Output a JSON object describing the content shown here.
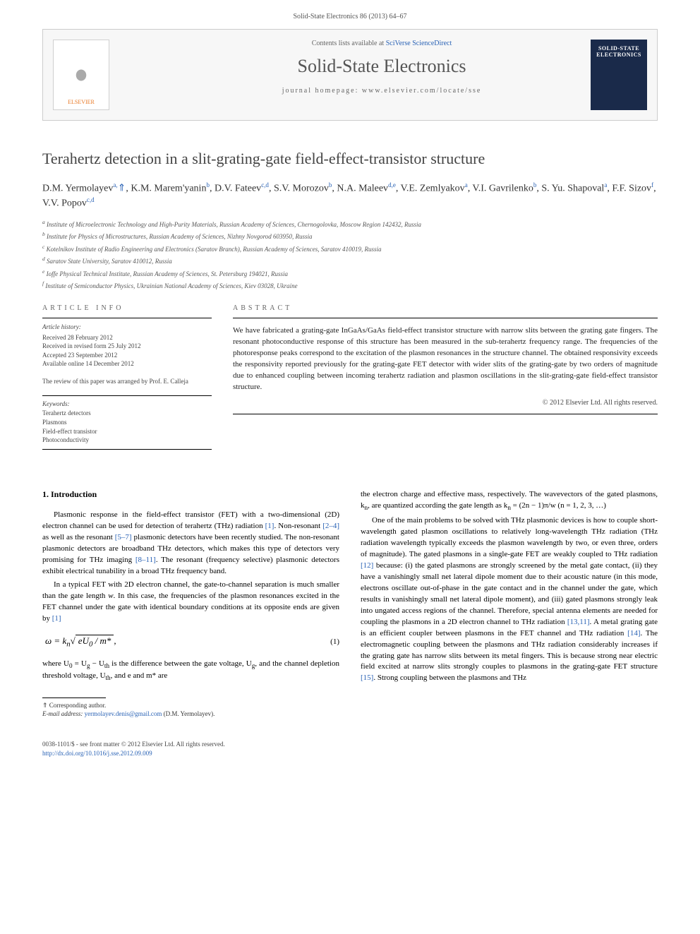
{
  "header": {
    "journal_ref": "Solid-State Electronics 86 (2013) 64–67"
  },
  "banner": {
    "contents_prefix": "Contents lists available at ",
    "contents_link": "SciVerse ScienceDirect",
    "journal_name": "Solid-State Electronics",
    "homepage_label": "journal homepage: www.elsevier.com/locate/sse",
    "publisher_logo_text": "ELSEVIER",
    "cover_title": "SOLID-STATE ELECTRONICS"
  },
  "article": {
    "title": "Terahertz detection in a slit-grating-gate field-effect-transistor structure",
    "authors_html": "D.M. Yermolayev<sup>a,</sup><span class='star'>⇑</span>, K.M. Marem'yanin<sup>b</sup>, D.V. Fateev<sup>c,d</sup>, S.V. Morozov<sup>b</sup>, N.A. Maleev<sup>d,e</sup>, V.E. Zemlyakov<sup>a</sup>, V.I. Gavrilenko<sup>b</sup>, S. Yu. Shapoval<sup>a</sup>, F.F. Sizov<sup>f</sup>, V.V. Popov<sup>c,d</sup>",
    "affiliations": [
      "a Institute of Microelectronic Technology and High-Purity Materials, Russian Academy of Sciences, Chernogolovka, Moscow Region 142432, Russia",
      "b Institute for Physics of Microstructures, Russian Academy of Sciences, Nizhny Novgorod 603950, Russia",
      "c Kotelnikov Institute of Radio Engineering and Electronics (Saratov Branch), Russian Academy of Sciences, Saratov 410019, Russia",
      "d Saratov State University, Saratov 410012, Russia",
      "e Ioffe Physical Technical Institute, Russian Academy of Sciences, St. Petersburg 194021, Russia",
      "f Institute of Semiconductor Physics, Ukrainian National Academy of Sciences, Kiev 03028, Ukraine"
    ]
  },
  "info": {
    "label": "ARTICLE INFO",
    "history_label": "Article history:",
    "history": [
      "Received 28 February 2012",
      "Received in revised form 25 July 2012",
      "Accepted 23 September 2012",
      "Available online 14 December 2012"
    ],
    "review_note": "The review of this paper was arranged by Prof. E. Calleja",
    "keywords_label": "Keywords:",
    "keywords": [
      "Terahertz detectors",
      "Plasmons",
      "Field-effect transistor",
      "Photoconductivity"
    ]
  },
  "abstract": {
    "label": "ABSTRACT",
    "text": "We have fabricated a grating-gate InGaAs/GaAs field-effect transistor structure with narrow slits between the grating gate fingers. The resonant photoconductive response of this structure has been measured in the sub-terahertz frequency range. The frequencies of the photoresponse peaks correspond to the excitation of the plasmon resonances in the structure channel. The obtained responsivity exceeds the responsivity reported previously for the grating-gate FET detector with wider slits of the grating-gate by two orders of magnitude due to enhanced coupling between incoming terahertz radiation and plasmon oscillations in the slit-grating-gate field-effect transistor structure.",
    "copyright": "© 2012 Elsevier Ltd. All rights reserved."
  },
  "body": {
    "section_heading": "1. Introduction",
    "col1_paras": [
      "Plasmonic response in the field-effect transistor (FET) with a two-dimensional (2D) electron channel can be used for detection of terahertz (THz) radiation <a class='ref-link'>[1]</a>. Non-resonant <a class='ref-link'>[2–4]</a> as well as the resonant <a class='ref-link'>[5–7]</a> plasmonic detectors have been recently studied. The non-resonant plasmonic detectors are broadband THz detectors, which makes this type of detectors very promising for THz imaging <a class='ref-link'>[8–11]</a>. The resonant (frequency selective) plasmonic detectors exhibit electrical tunability in a broad THz frequency band.",
      "In a typical FET with 2D electron channel, the gate-to-channel separation is much smaller than the gate length <i>w</i>. In this case, the frequencies of the plasmon resonances excited in the FET channel under the gate with identical boundary conditions at its opposite ends are given by <a class='ref-link'>[1]</a>"
    ],
    "equation": "ω = k<sub>n</sub>√<span class='sqrt-box'>eU<sub>0</sub> / m*</span>,",
    "equation_number": "(1)",
    "col1_after_eq": "where U<sub>0</sub> = U<sub>g</sub> − U<sub>th</sub> is the difference between the gate voltage, U<sub>g</sub>, and the channel depletion threshold voltage, U<sub>th</sub>, and e and m* are",
    "col2_paras": [
      "the electron charge and effective mass, respectively. The wavevectors of the gated plasmons, k<sub>n</sub>, are quantized according the gate length as k<sub>n</sub> = (2n − 1)π/w (n = 1, 2, 3, …)",
      "One of the main problems to be solved with THz plasmonic devices is how to couple short-wavelength gated plasmon oscillations to relatively long-wavelength THz radiation (THz radiation wavelength typically exceeds the plasmon wavelength by two, or even three, orders of magnitude). The gated plasmons in a single-gate FET are weakly coupled to THz radiation <a class='ref-link'>[12]</a> because: (i) the gated plasmons are strongly screened by the metal gate contact, (ii) they have a vanishingly small net lateral dipole moment due to their acoustic nature (in this mode, electrons oscillate out-of-phase in the gate contact and in the channel under the gate, which results in vanishingly small net lateral dipole moment), and (iii) gated plasmons strongly leak into ungated access regions of the channel. Therefore, special antenna elements are needed for coupling the plasmons in a 2D electron channel to THz radiation <a class='ref-link'>[13,11]</a>. A metal grating gate is an efficient coupler between plasmons in the FET channel and THz radiation <a class='ref-link'>[14]</a>. The electromagnetic coupling between the plasmons and THz radiation considerably increases if the grating gate has narrow slits between its metal fingers. This is because strong near electric field excited at narrow slits strongly couples to plasmons in the grating-gate FET structure <a class='ref-link'>[15]</a>. Strong coupling between the plasmons and THz"
    ]
  },
  "footnote": {
    "corr_label": "⇑ Corresponding author.",
    "email_label": "E-mail address:",
    "email": "yermolayev.denis@gmail.com",
    "email_author": "(D.M. Yermolayev)."
  },
  "footer": {
    "line1": "0038-1101/$ - see front matter © 2012 Elsevier Ltd. All rights reserved.",
    "doi": "http://dx.doi.org/10.1016/j.sse.2012.09.009"
  },
  "colors": {
    "link": "#2962b5",
    "text": "#000000",
    "muted": "#555555"
  }
}
